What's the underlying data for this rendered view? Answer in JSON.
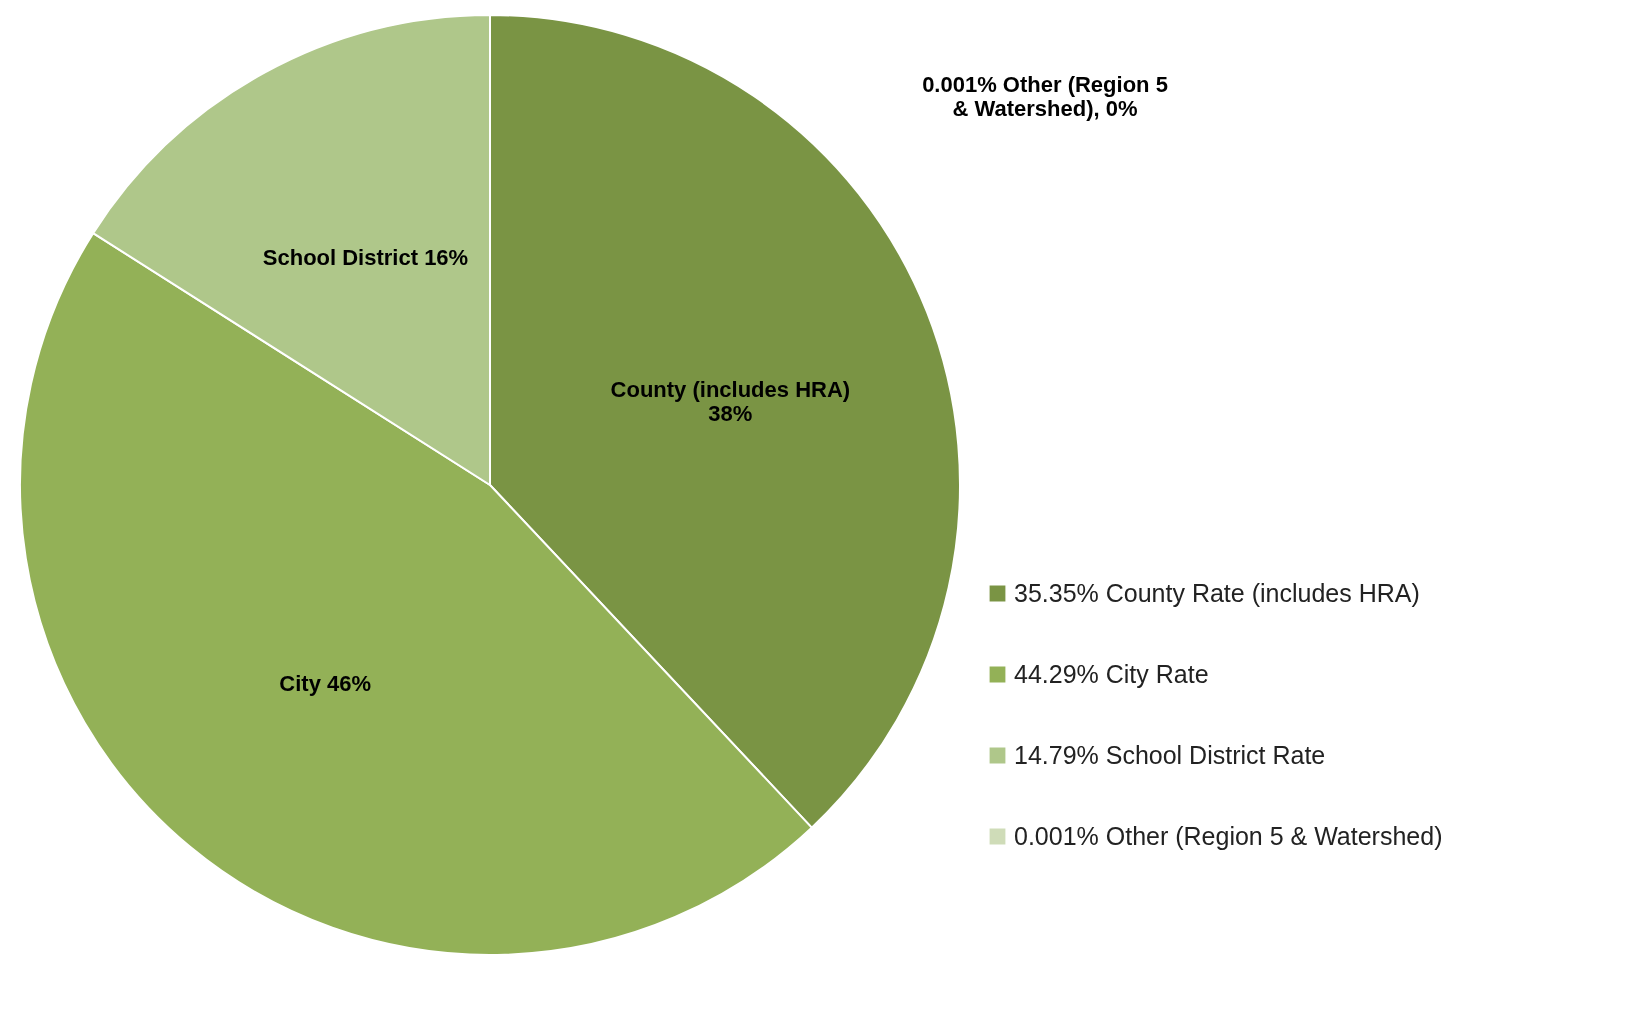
{
  "chart_data": {
    "type": "pie",
    "categories": [
      "35.35%  County Rate (includes HRA)",
      "44.29%  City Rate",
      "14.79%  School District Rate",
      "0.001%  Other (Region 5 & Watershed)"
    ],
    "values": [
      38,
      46,
      16,
      0
    ],
    "colors": [
      "#7a9444",
      "#93b157",
      "#afc78a",
      "#cfdcb8"
    ],
    "value_labels": [
      "County (includes HRA)\n38%",
      "City   46%",
      "School District  16%",
      "0.001%  Other (Region 5\n& Watershed), 0%"
    ],
    "legend": "bottom right"
  }
}
